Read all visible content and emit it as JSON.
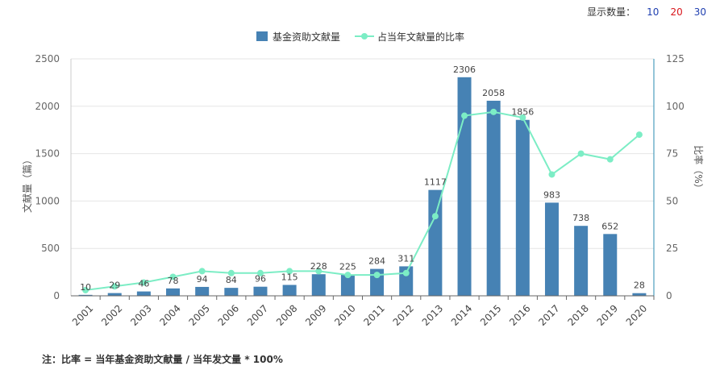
{
  "display_count": {
    "label": "显示数量：",
    "options": [
      {
        "label": "10",
        "color": "#1f3fb0"
      },
      {
        "label": "20",
        "color": "#d9161c"
      },
      {
        "label": "30",
        "color": "#1f3fb0"
      }
    ]
  },
  "footnote": "注：比率 = 当年基金资助文献量 / 当年发文量 * 100%",
  "colors": {
    "bar": "#4682b4",
    "line": "#7cedc5",
    "axis_right": "#2a8bb0",
    "grid": "#e6e6e6"
  },
  "chart_data": {
    "type": "bar+line",
    "categories": [
      "2001",
      "2002",
      "2003",
      "2004",
      "2005",
      "2006",
      "2007",
      "2008",
      "2009",
      "2010",
      "2011",
      "2012",
      "2013",
      "2014",
      "2015",
      "2016",
      "2017",
      "2018",
      "2019",
      "2020"
    ],
    "series": [
      {
        "name": "基金资助文献量",
        "type": "bar",
        "axis": "left",
        "values": [
          10,
          29,
          46,
          78,
          94,
          84,
          96,
          115,
          228,
          225,
          284,
          311,
          1117,
          2306,
          2058,
          1856,
          983,
          738,
          652,
          28
        ]
      },
      {
        "name": "占当年文献量的比率",
        "type": "line",
        "axis": "right",
        "values": [
          3,
          5,
          7,
          10,
          13,
          12,
          12,
          13,
          13,
          11,
          11,
          12,
          42,
          95,
          97,
          94,
          64,
          75,
          72,
          85
        ]
      }
    ],
    "ylabel_left": "文献量（篇）",
    "ylabel_right": "比率（%）",
    "ylim_left": [
      0,
      2500
    ],
    "ylim_right": [
      0,
      125
    ],
    "yticks_left": [
      "0",
      "500",
      "1000",
      "1500",
      "2000",
      "2500"
    ],
    "yticks_right": [
      "0",
      "25",
      "50",
      "75",
      "100",
      "125"
    ],
    "legend_position": "top-center"
  }
}
